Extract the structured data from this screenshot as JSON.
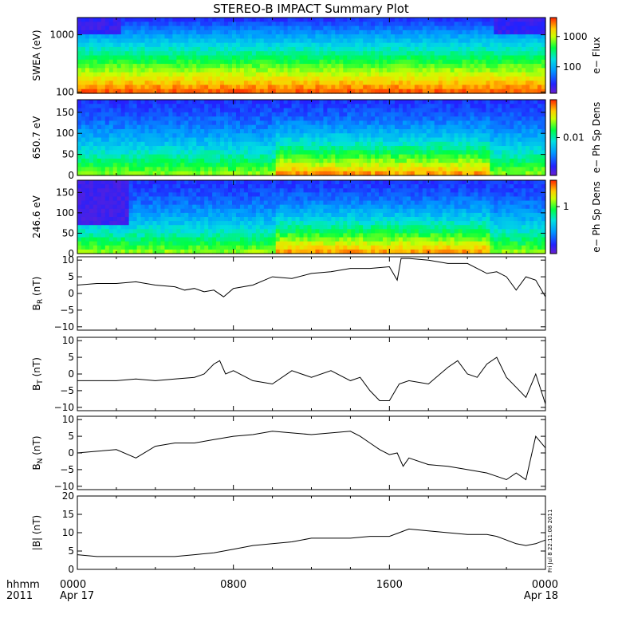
{
  "title": "STEREO-B IMPACT Summary Plot",
  "stamp": "Fri Jul  8 22:11:08 2011",
  "time_axis": {
    "label_line1": "hhmm",
    "label_line2": "2011",
    "ticks": [
      {
        "label": "0000",
        "sub": "Apr 17",
        "hour": 0
      },
      {
        "label": "0800",
        "sub": "",
        "hour": 8
      },
      {
        "label": "1600",
        "sub": "",
        "hour": 16
      },
      {
        "label": "0000",
        "sub": "Apr 18",
        "hour": 24
      }
    ],
    "range_hours": [
      0,
      24
    ]
  },
  "colors": {
    "line": "#000000"
  },
  "chart_data": [
    {
      "type": "heatmap",
      "ylabel": "SWEA (eV)",
      "yscale": "log",
      "ylim": [
        95,
        2000
      ],
      "yticks": [
        {
          "v": 100,
          "label": "100"
        },
        {
          "v": 1000,
          "label": "1000"
        }
      ],
      "colorbar_label": "e− Flux",
      "colorbar_ticks": [
        {
          "f": 0.35,
          "label": "100"
        },
        {
          "f": 0.75,
          "label": "1000"
        }
      ],
      "description_levels": "low energy high flux (red) to high energy low flux (blue)",
      "data_gaps_hours": [
        [
          2.1,
          21.3
        ]
      ]
    },
    {
      "type": "heatmap",
      "ylabel": "650.7 eV",
      "ylim": [
        0,
        180
      ],
      "yticks": [
        {
          "v": 0,
          "label": "0"
        },
        {
          "v": 50,
          "label": "50"
        },
        {
          "v": 100,
          "label": "100"
        },
        {
          "v": 150,
          "label": "150"
        }
      ],
      "colorbar_label": "e− Ph Sp Dens",
      "colorbar_ticks": [
        {
          "f": 0.5,
          "label": "0.01"
        }
      ]
    },
    {
      "type": "heatmap",
      "ylabel": "246.6 eV",
      "ylim": [
        0,
        180
      ],
      "yticks": [
        {
          "v": 0,
          "label": "0"
        },
        {
          "v": 50,
          "label": "50"
        },
        {
          "v": 100,
          "label": "100"
        },
        {
          "v": 150,
          "label": "150"
        }
      ],
      "colorbar_label": "e− Ph Sp Dens",
      "colorbar_ticks": [
        {
          "f": 0.64,
          "label": "1"
        }
      ]
    },
    {
      "type": "line",
      "ylabel": "B",
      "ysub": "R",
      "yunit": " (nT)",
      "ylim": [
        -11,
        11
      ],
      "yticks": [
        {
          "v": -10,
          "label": "−10"
        },
        {
          "v": -5,
          "label": "−5"
        },
        {
          "v": 0,
          "label": "0"
        },
        {
          "v": 5,
          "label": "5"
        },
        {
          "v": 10,
          "label": "10"
        }
      ],
      "x": [
        0,
        1,
        2,
        3,
        4,
        5,
        5.5,
        6,
        6.5,
        7,
        7.5,
        8,
        9,
        10,
        11,
        12,
        13,
        14,
        15,
        16,
        16.4,
        16.6,
        17,
        18,
        19,
        20,
        21,
        21.5,
        22,
        22.5,
        23,
        23.5,
        24
      ],
      "y": [
        2.5,
        3,
        3,
        3.5,
        2.5,
        2,
        1,
        1.5,
        0.5,
        1,
        -1,
        1.5,
        2.5,
        5,
        4.5,
        6,
        6.5,
        7.5,
        7.5,
        8,
        4,
        10.5,
        10.5,
        10,
        9,
        9,
        6,
        6.5,
        5,
        1,
        5,
        4,
        -1
      ]
    },
    {
      "type": "line",
      "ylabel": "B",
      "ysub": "T",
      "yunit": " (nT)",
      "ylim": [
        -11,
        11
      ],
      "yticks": [
        {
          "v": -10,
          "label": "−10"
        },
        {
          "v": -5,
          "label": "−5"
        },
        {
          "v": 0,
          "label": "0"
        },
        {
          "v": 5,
          "label": "5"
        },
        {
          "v": 10,
          "label": "10"
        }
      ],
      "x": [
        0,
        1,
        2,
        3,
        4,
        5,
        6,
        6.5,
        7,
        7.3,
        7.6,
        8,
        9,
        10,
        11,
        12,
        13,
        14,
        14.5,
        15,
        15.5,
        16,
        16.5,
        17,
        18,
        19,
        19.5,
        20,
        20.5,
        21,
        21.5,
        22,
        22.5,
        23,
        23.5,
        24
      ],
      "y": [
        -2,
        -2,
        -2,
        -1.5,
        -2,
        -1.5,
        -1,
        0,
        3,
        4,
        0,
        1,
        -2,
        -3,
        1,
        -1,
        1,
        -2,
        -1,
        -5,
        -8,
        -8,
        -3,
        -2,
        -3,
        2,
        4,
        0,
        -1,
        3,
        5,
        -1,
        -4,
        -7,
        0,
        -9
      ]
    },
    {
      "type": "line",
      "ylabel": "B",
      "ysub": "N",
      "yunit": " (nT)",
      "ylim": [
        -11,
        11
      ],
      "yticks": [
        {
          "v": -10,
          "label": "−10"
        },
        {
          "v": -5,
          "label": "−5"
        },
        {
          "v": 0,
          "label": "0"
        },
        {
          "v": 5,
          "label": "5"
        },
        {
          "v": 10,
          "label": "10"
        }
      ],
      "x": [
        0,
        1,
        2,
        3,
        4,
        5,
        6,
        7,
        8,
        9,
        10,
        11,
        12,
        13,
        14,
        14.5,
        15,
        15.5,
        16,
        16.4,
        16.7,
        17,
        18,
        19,
        20,
        21,
        21.5,
        22,
        22.5,
        23,
        23.5,
        24
      ],
      "y": [
        0,
        0.5,
        1,
        -1.5,
        2,
        3,
        3,
        4,
        5,
        5.5,
        6.5,
        6,
        5.5,
        6,
        6.5,
        5,
        3,
        1,
        -0.5,
        0,
        -4,
        -1.5,
        -3.5,
        -4,
        -5,
        -6,
        -7,
        -8,
        -6,
        -8,
        5,
        1.5
      ]
    },
    {
      "type": "line",
      "ylabel": "|B| (nT)",
      "ylim": [
        0,
        20
      ],
      "yticks": [
        {
          "v": 0,
          "label": "0"
        },
        {
          "v": 5,
          "label": "5"
        },
        {
          "v": 10,
          "label": "10"
        },
        {
          "v": 15,
          "label": "15"
        },
        {
          "v": 20,
          "label": "20"
        }
      ],
      "x": [
        0,
        1,
        2,
        3,
        4,
        5,
        6,
        7,
        8,
        9,
        10,
        11,
        12,
        13,
        14,
        15,
        16,
        16.5,
        17,
        18,
        19,
        20,
        21,
        21.5,
        22,
        22.5,
        23,
        23.5,
        24
      ],
      "y": [
        4,
        3.5,
        3.5,
        3.5,
        3.5,
        3.5,
        4,
        4.5,
        5.5,
        6.5,
        7,
        7.5,
        8.5,
        8.5,
        8.5,
        9,
        9,
        10,
        11,
        10.5,
        10,
        9.5,
        9.5,
        9,
        8,
        7,
        6.5,
        7,
        8
      ]
    }
  ]
}
